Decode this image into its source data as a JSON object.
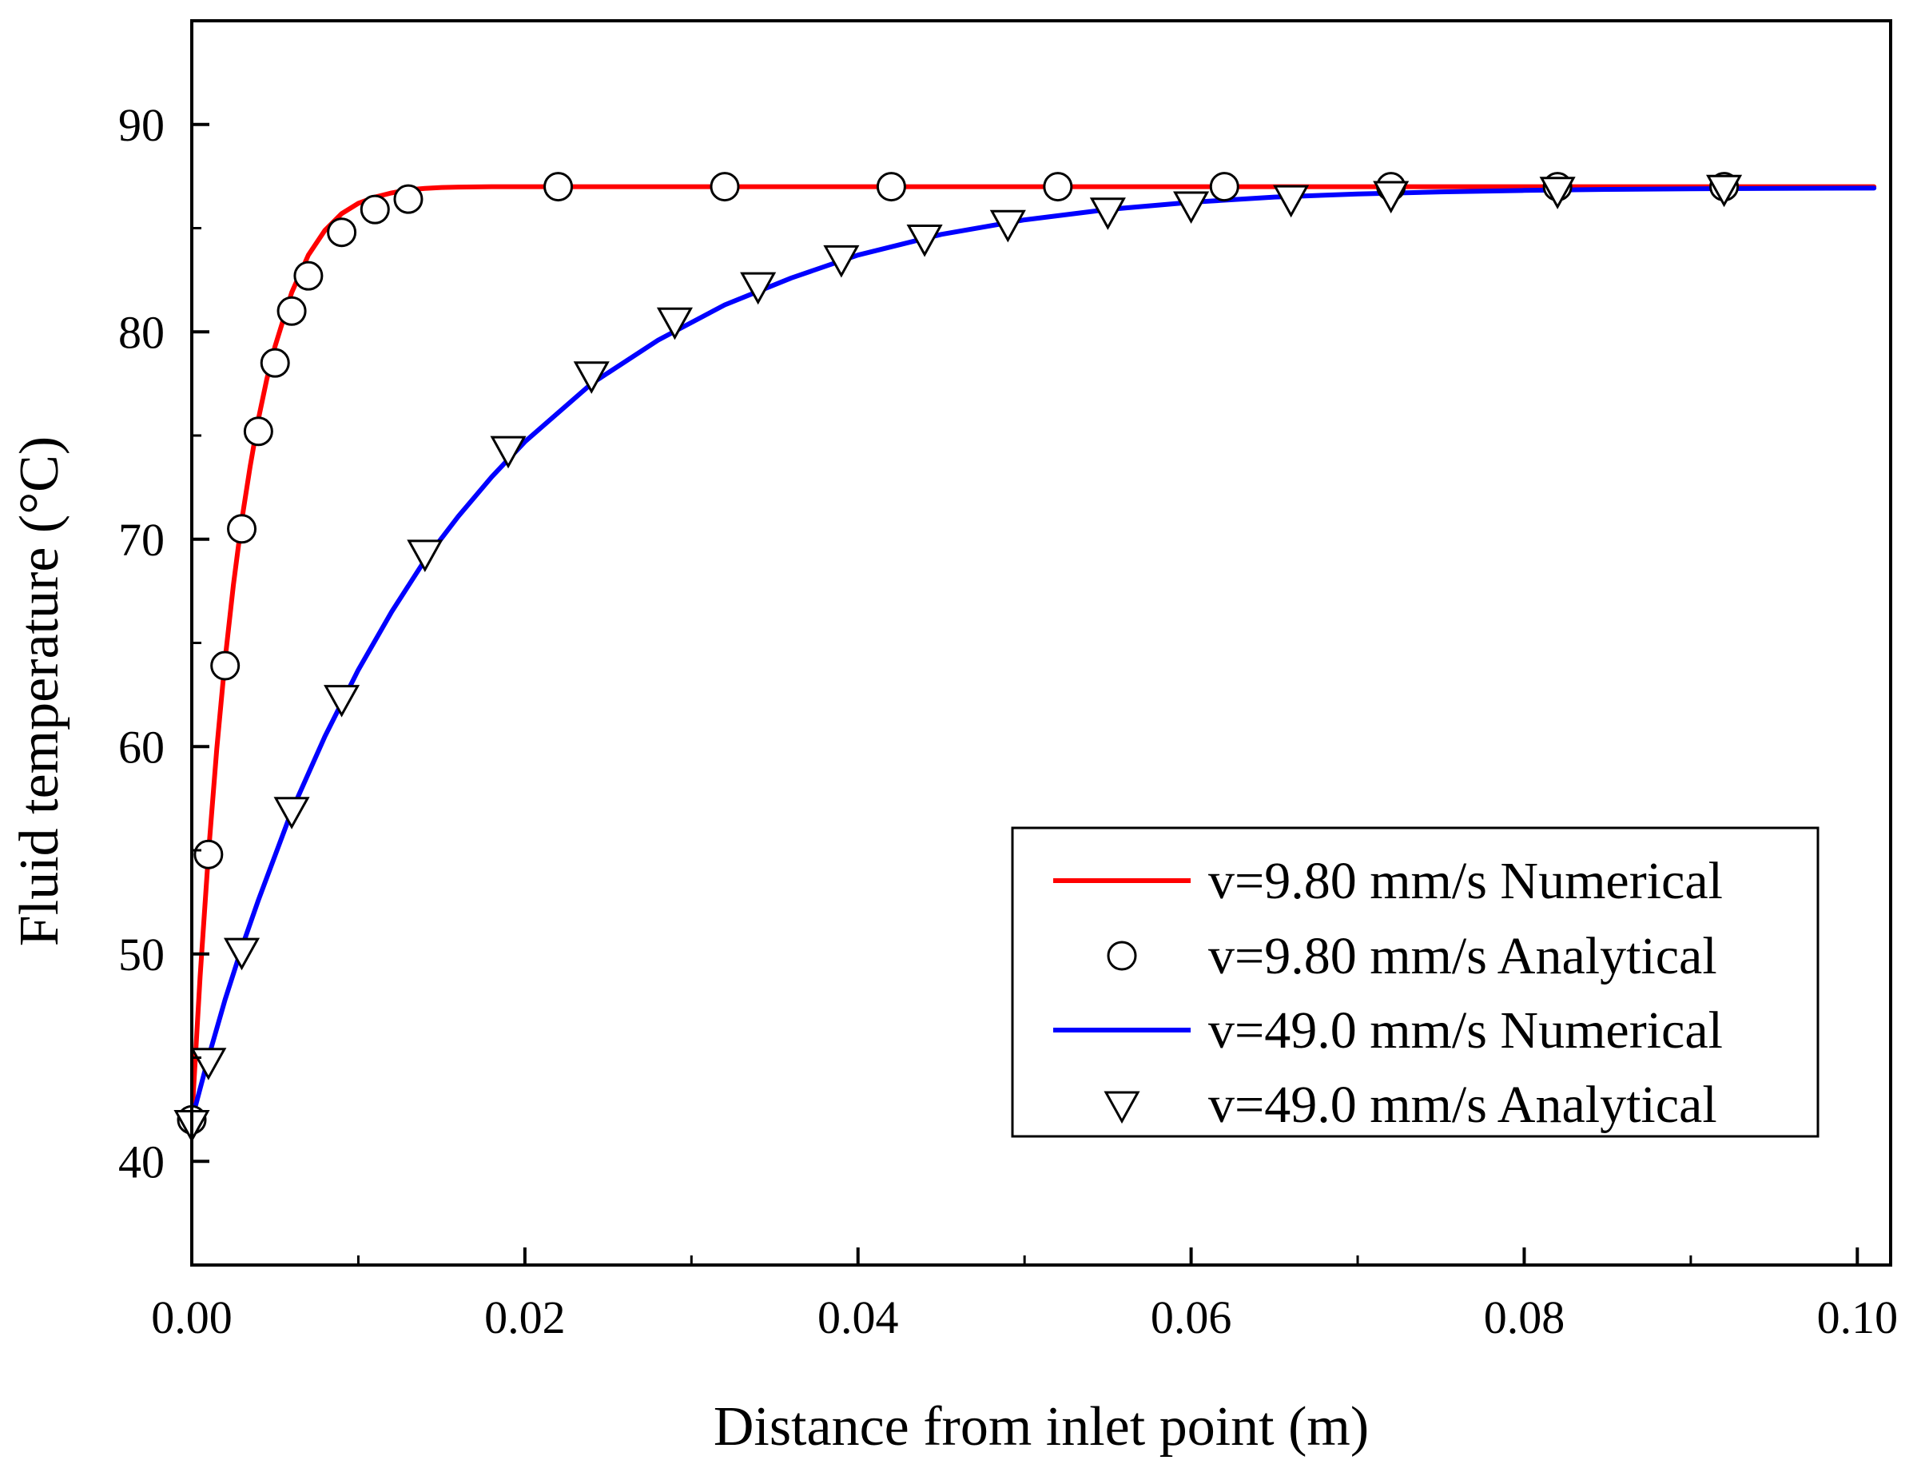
{
  "chart_data": {
    "type": "line",
    "title": "",
    "xlabel": "Distance from inlet point (m)",
    "ylabel": "Fluid temperature (°C)",
    "xlim": [
      0.0,
      0.102
    ],
    "ylim": [
      35,
      95
    ],
    "xticks": [
      0.0,
      0.02,
      0.04,
      0.06,
      0.08,
      0.1
    ],
    "xtick_labels": [
      "0.00",
      "0.02",
      "0.04",
      "0.06",
      "0.08",
      "0.10"
    ],
    "yticks": [
      40,
      50,
      60,
      70,
      80,
      90
    ],
    "ytick_labels": [
      "40",
      "50",
      "60",
      "70",
      "80",
      "90"
    ],
    "grid": false,
    "legend_position": "bottom-right",
    "series": [
      {
        "name": "v=9.80 mm/s Numerical",
        "kind": "line",
        "color": "#ff0000",
        "x": [
          0.0,
          0.0005,
          0.001,
          0.0015,
          0.002,
          0.0025,
          0.003,
          0.0035,
          0.004,
          0.0045,
          0.005,
          0.006,
          0.007,
          0.008,
          0.009,
          0.01,
          0.011,
          0.012,
          0.013,
          0.014,
          0.015,
          0.016,
          0.017,
          0.018,
          0.02,
          0.025,
          0.03,
          0.04,
          0.05,
          0.06,
          0.07,
          0.08,
          0.09,
          0.101
        ],
        "y": [
          42.0,
          48.9,
          54.8,
          59.9,
          64.2,
          67.8,
          70.9,
          73.5,
          75.8,
          77.7,
          79.3,
          81.9,
          83.7,
          84.9,
          85.7,
          86.2,
          86.5,
          86.7,
          86.85,
          86.92,
          86.96,
          86.98,
          86.99,
          87.0,
          87.0,
          87.0,
          87.0,
          87.0,
          87.0,
          87.0,
          87.0,
          87.0,
          87.0,
          87.0
        ]
      },
      {
        "name": "v=9.80 mm/s Analytical",
        "kind": "marker",
        "marker": "circle",
        "x": [
          0.0,
          0.001,
          0.002,
          0.003,
          0.004,
          0.005,
          0.006,
          0.007,
          0.009,
          0.011,
          0.013,
          0.022,
          0.032,
          0.042,
          0.052,
          0.062,
          0.072,
          0.082,
          0.092
        ],
        "y": [
          42.0,
          54.8,
          63.9,
          70.5,
          75.2,
          78.5,
          81.0,
          82.7,
          84.8,
          85.9,
          86.4,
          87.0,
          87.0,
          87.0,
          87.0,
          87.0,
          87.0,
          87.0,
          87.0
        ]
      },
      {
        "name": "v=49.0 mm/s Numerical",
        "kind": "line",
        "color": "#0000ff",
        "x": [
          0.0,
          0.001,
          0.002,
          0.003,
          0.004,
          0.006,
          0.008,
          0.01,
          0.012,
          0.014,
          0.016,
          0.018,
          0.02,
          0.024,
          0.028,
          0.032,
          0.036,
          0.04,
          0.045,
          0.05,
          0.055,
          0.06,
          0.065,
          0.07,
          0.075,
          0.08,
          0.085,
          0.09,
          0.095,
          0.101
        ],
        "y": [
          42.0,
          45.0,
          47.8,
          50.3,
          52.6,
          56.9,
          60.5,
          63.7,
          66.5,
          69.0,
          71.1,
          73.0,
          74.7,
          77.5,
          79.6,
          81.3,
          82.6,
          83.7,
          84.7,
          85.4,
          85.9,
          86.25,
          86.5,
          86.65,
          86.75,
          86.82,
          86.87,
          86.9,
          86.92,
          86.93
        ]
      },
      {
        "name": "v=49.0 mm/s Analytical",
        "kind": "marker",
        "marker": "triangle-down",
        "x": [
          0.0,
          0.001,
          0.003,
          0.006,
          0.009,
          0.014,
          0.019,
          0.024,
          0.029,
          0.034,
          0.039,
          0.044,
          0.049,
          0.055,
          0.06,
          0.066,
          0.072,
          0.082,
          0.092
        ],
        "y": [
          41.8,
          44.8,
          50.1,
          56.9,
          62.3,
          69.3,
          74.3,
          77.9,
          80.5,
          82.2,
          83.5,
          84.5,
          85.2,
          85.8,
          86.1,
          86.4,
          86.6,
          86.8,
          86.9
        ]
      }
    ]
  }
}
